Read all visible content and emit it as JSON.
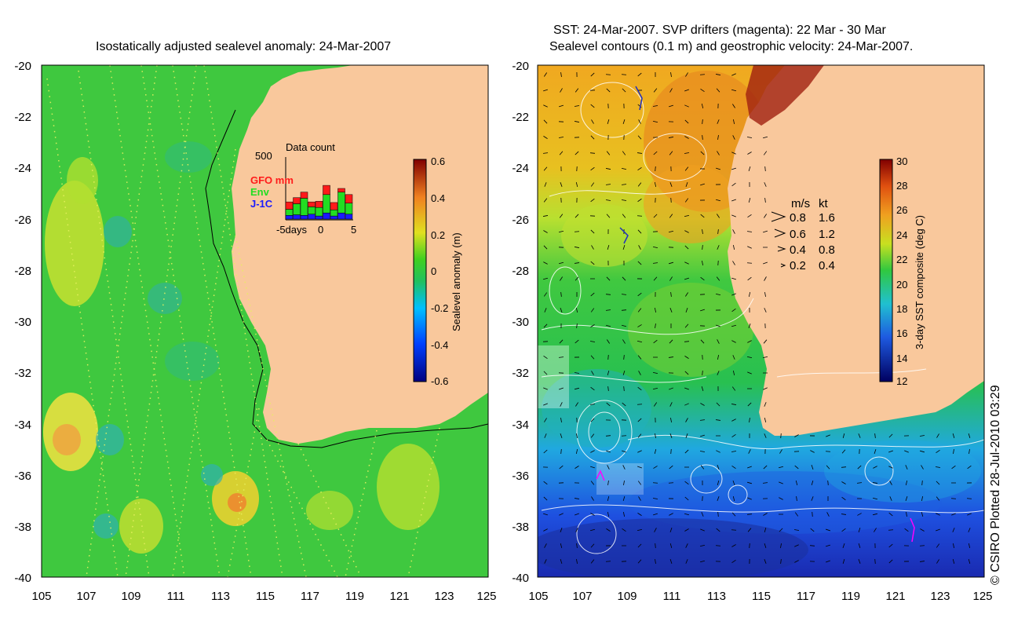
{
  "left_panel": {
    "title": "Isostatically adjusted sealevel anomaly: 24-Mar-2007",
    "y_ticks": [
      "-20",
      "-22",
      "-24",
      "-26",
      "-28",
      "-30",
      "-32",
      "-34",
      "-36",
      "-38",
      "-40"
    ],
    "x_ticks": [
      "105",
      "107",
      "109",
      "111",
      "113",
      "115",
      "117",
      "119",
      "121",
      "123",
      "125"
    ],
    "inset": {
      "title": "Data count",
      "ymax": "500",
      "legend": [
        {
          "label": "GFO mm",
          "color": "#ff1a1a"
        },
        {
          "label": "Env",
          "color": "#22dd22"
        },
        {
          "label": "J-1C",
          "color": "#1a1aff"
        }
      ],
      "x_labels": [
        "-5days",
        "0",
        "5"
      ],
      "bars": [
        {
          "j": 0.06,
          "env": 0.1,
          "gfo": 0.12
        },
        {
          "j": 0.07,
          "env": 0.18,
          "gfo": 0.1
        },
        {
          "j": 0.06,
          "env": 0.28,
          "gfo": 0.1
        },
        {
          "j": 0.08,
          "env": 0.12,
          "gfo": 0.08
        },
        {
          "j": 0.05,
          "env": 0.14,
          "gfo": 0.1
        },
        {
          "j": 0.1,
          "env": 0.3,
          "gfo": 0.15
        },
        {
          "j": 0.05,
          "env": 0.1,
          "gfo": 0.12
        },
        {
          "j": 0.1,
          "env": 0.34,
          "gfo": 0.06
        },
        {
          "j": 0.08,
          "env": 0.18,
          "gfo": 0.14
        }
      ]
    },
    "colorbar": {
      "label": "Sealevel anomaly (m)",
      "ticks": [
        "0.6",
        "0.4",
        "0.2",
        "0",
        "-0.2",
        "-0.4",
        "-0.6"
      ]
    }
  },
  "right_panel": {
    "title_line1": "SST: 24-Mar-2007. SVP drifters (magenta): 22 Mar - 30 Mar",
    "title_line2": "Sealevel contours (0.1 m) and geostrophic velocity: 24-Mar-2007.",
    "y_ticks": [
      "-20",
      "-22",
      "-24",
      "-26",
      "-28",
      "-30",
      "-32",
      "-34",
      "-36",
      "-38",
      "-40"
    ],
    "x_ticks": [
      "105",
      "107",
      "109",
      "111",
      "113",
      "115",
      "117",
      "119",
      "121",
      "123",
      "125"
    ],
    "velocity_legend": {
      "header_ms": "m/s",
      "header_kt": "kt",
      "rows": [
        {
          "ms": "0.8",
          "kt": "1.6"
        },
        {
          "ms": "0.6",
          "kt": "1.2"
        },
        {
          "ms": "0.4",
          "kt": "0.8"
        },
        {
          "ms": "0.2",
          "kt": "0.4"
        }
      ]
    },
    "colorbar": {
      "label": "3-day SST composite (deg C)",
      "ticks": [
        "30",
        "28",
        "26",
        "24",
        "22",
        "20",
        "18",
        "16",
        "14",
        "12"
      ]
    }
  },
  "credit": "© CSIRO Plotted 28-Jul-2010 03:29",
  "colors": {
    "land": "#f9c89c",
    "sla_green": "#3fc83f",
    "sst_blue": "#1e63d9"
  }
}
